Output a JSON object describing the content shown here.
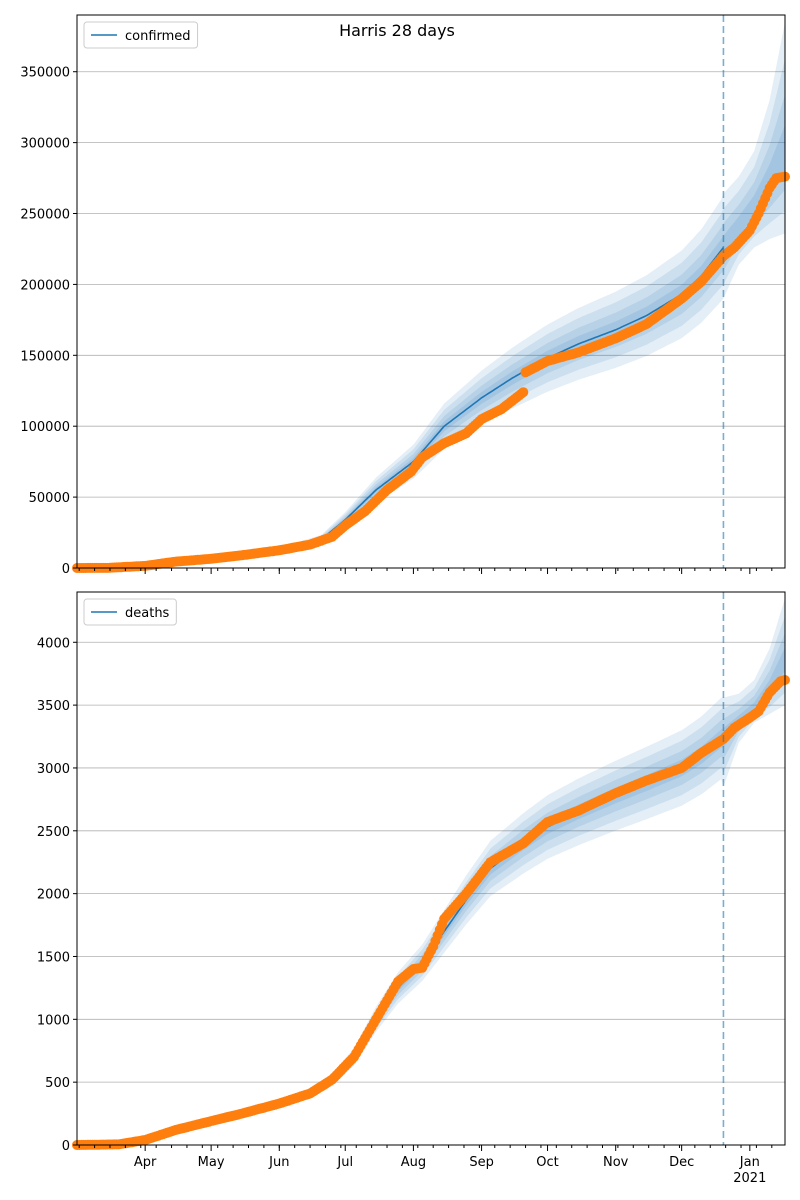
{
  "title": "Harris 28 days",
  "chart_data": [
    {
      "type": "line",
      "legend": "confirmed",
      "legend_position": "top-left",
      "grid": "horizontal",
      "x_range": [
        "2020-03-01",
        "2021-01-17"
      ],
      "ylim": [
        0,
        390000
      ],
      "yticks": [
        "0",
        "50000",
        "100000",
        "150000",
        "200000",
        "250000",
        "300000",
        "350000"
      ],
      "ytick_values": [
        0,
        50000,
        100000,
        150000,
        200000,
        250000,
        300000,
        350000
      ],
      "forecast_start": "2020-12-20",
      "model_line": [
        [
          "2020-03-01",
          0
        ],
        [
          "2020-04-01",
          1800
        ],
        [
          "2020-05-01",
          6500
        ],
        [
          "2020-06-01",
          12500
        ],
        [
          "2020-06-20",
          20000
        ],
        [
          "2020-07-01",
          34000
        ],
        [
          "2020-07-15",
          55000
        ],
        [
          "2020-08-01",
          75000
        ],
        [
          "2020-08-15",
          100000
        ],
        [
          "2020-09-01",
          120000
        ],
        [
          "2020-09-15",
          134000
        ],
        [
          "2020-10-01",
          148000
        ],
        [
          "2020-10-15",
          158000
        ],
        [
          "2020-11-01",
          168000
        ],
        [
          "2020-11-15",
          178000
        ],
        [
          "2020-12-01",
          193000
        ],
        [
          "2020-12-10",
          206000
        ],
        [
          "2020-12-20",
          226000
        ]
      ],
      "forecast_median": [
        [
          "2020-12-20",
          226000
        ],
        [
          "2020-12-27",
          240000
        ],
        [
          "2021-01-03",
          254000
        ],
        [
          "2021-01-10",
          272000
        ],
        [
          "2021-01-17",
          292000
        ]
      ],
      "forecast_lower": [
        [
          "2020-12-20",
          190000
        ],
        [
          "2020-12-27",
          214000
        ],
        [
          "2021-01-03",
          226000
        ],
        [
          "2021-01-10",
          232000
        ],
        [
          "2021-01-17",
          236000
        ]
      ],
      "forecast_upper": [
        [
          "2020-12-20",
          264000
        ],
        [
          "2020-12-27",
          276000
        ],
        [
          "2021-01-03",
          294000
        ],
        [
          "2021-01-10",
          330000
        ],
        [
          "2021-01-17",
          385000
        ]
      ],
      "observed": [
        [
          "2020-03-01",
          0
        ],
        [
          "2020-03-15",
          100
        ],
        [
          "2020-04-01",
          1500
        ],
        [
          "2020-04-15",
          4500
        ],
        [
          "2020-05-01",
          6500
        ],
        [
          "2020-05-15",
          9000
        ],
        [
          "2020-06-01",
          12500
        ],
        [
          "2020-06-15",
          16500
        ],
        [
          "2020-06-25",
          22000
        ],
        [
          "2020-07-01",
          30000
        ],
        [
          "2020-07-10",
          40000
        ],
        [
          "2020-07-20",
          55000
        ],
        [
          "2020-07-31",
          68000
        ],
        [
          "2020-08-05",
          78000
        ],
        [
          "2020-08-15",
          88000
        ],
        [
          "2020-08-25",
          95000
        ],
        [
          "2020-09-01",
          105000
        ],
        [
          "2020-09-10",
          112000
        ],
        [
          "2020-09-15",
          118000
        ],
        [
          "2020-09-20",
          124000
        ],
        [
          "2020-09-21",
          138000
        ],
        [
          "2020-10-01",
          146000
        ],
        [
          "2020-10-15",
          152000
        ],
        [
          "2020-11-01",
          162000
        ],
        [
          "2020-11-15",
          172000
        ],
        [
          "2020-12-01",
          190000
        ],
        [
          "2020-12-10",
          202000
        ],
        [
          "2020-12-20",
          220000
        ],
        [
          "2020-12-25",
          226000
        ],
        [
          "2021-01-01",
          238000
        ],
        [
          "2021-01-05",
          250000
        ],
        [
          "2021-01-10",
          268000
        ],
        [
          "2021-01-13",
          275000
        ],
        [
          "2021-01-17",
          276000
        ]
      ]
    },
    {
      "type": "line",
      "legend": "deaths",
      "legend_position": "top-left",
      "grid": "horizontal",
      "x_range": [
        "2020-03-01",
        "2021-01-17"
      ],
      "ylim": [
        0,
        4400
      ],
      "yticks": [
        "0",
        "500",
        "1000",
        "1500",
        "2000",
        "2500",
        "3000",
        "3500",
        "4000"
      ],
      "ytick_values": [
        0,
        500,
        1000,
        1500,
        2000,
        2500,
        3000,
        3500,
        4000
      ],
      "forecast_start": "2020-12-20",
      "model_line": [
        [
          "2020-03-01",
          0
        ],
        [
          "2020-03-20",
          5
        ],
        [
          "2020-04-01",
          40
        ],
        [
          "2020-04-15",
          120
        ],
        [
          "2020-05-01",
          190
        ],
        [
          "2020-05-15",
          250
        ],
        [
          "2020-06-01",
          330
        ],
        [
          "2020-06-15",
          410
        ],
        [
          "2020-06-25",
          520
        ],
        [
          "2020-07-05",
          700
        ],
        [
          "2020-07-15",
          1000
        ],
        [
          "2020-07-25",
          1250
        ],
        [
          "2020-08-05",
          1450
        ],
        [
          "2020-08-15",
          1700
        ],
        [
          "2020-08-25",
          1950
        ],
        [
          "2020-09-05",
          2200
        ],
        [
          "2020-09-20",
          2400
        ],
        [
          "2020-10-01",
          2530
        ],
        [
          "2020-10-15",
          2650
        ],
        [
          "2020-11-01",
          2780
        ],
        [
          "2020-11-15",
          2880
        ],
        [
          "2020-12-01",
          3000
        ],
        [
          "2020-12-10",
          3100
        ],
        [
          "2020-12-20",
          3250
        ]
      ],
      "forecast_median": [
        [
          "2020-12-20",
          3250
        ],
        [
          "2020-12-27",
          3370
        ],
        [
          "2021-01-03",
          3470
        ],
        [
          "2021-01-10",
          3630
        ],
        [
          "2021-01-17",
          3850
        ]
      ],
      "forecast_lower": [
        [
          "2020-12-20",
          2850
        ],
        [
          "2020-12-27",
          3200
        ],
        [
          "2021-01-03",
          3360
        ],
        [
          "2021-01-10",
          3430
        ],
        [
          "2021-01-17",
          3500
        ]
      ],
      "forecast_upper": [
        [
          "2020-12-20",
          3560
        ],
        [
          "2020-12-27",
          3590
        ],
        [
          "2021-01-03",
          3700
        ],
        [
          "2021-01-10",
          3950
        ],
        [
          "2021-01-17",
          4350
        ]
      ],
      "observed": [
        [
          "2020-03-01",
          0
        ],
        [
          "2020-03-20",
          5
        ],
        [
          "2020-04-01",
          40
        ],
        [
          "2020-04-15",
          120
        ],
        [
          "2020-05-01",
          190
        ],
        [
          "2020-05-15",
          250
        ],
        [
          "2020-06-01",
          330
        ],
        [
          "2020-06-15",
          410
        ],
        [
          "2020-06-25",
          520
        ],
        [
          "2020-07-05",
          700
        ],
        [
          "2020-07-15",
          1000
        ],
        [
          "2020-07-25",
          1300
        ],
        [
          "2020-08-01",
          1400
        ],
        [
          "2020-08-05",
          1410
        ],
        [
          "2020-08-10",
          1580
        ],
        [
          "2020-08-15",
          1800
        ],
        [
          "2020-08-25",
          2000
        ],
        [
          "2020-09-05",
          2250
        ],
        [
          "2020-09-20",
          2400
        ],
        [
          "2020-10-01",
          2570
        ],
        [
          "2020-10-15",
          2660
        ],
        [
          "2020-11-01",
          2800
        ],
        [
          "2020-11-15",
          2900
        ],
        [
          "2020-12-01",
          3000
        ],
        [
          "2020-12-10",
          3120
        ],
        [
          "2020-12-20",
          3230
        ],
        [
          "2020-12-25",
          3320
        ],
        [
          "2021-01-01",
          3400
        ],
        [
          "2021-01-05",
          3450
        ],
        [
          "2021-01-10",
          3600
        ],
        [
          "2021-01-15",
          3690
        ],
        [
          "2021-01-17",
          3700
        ]
      ]
    }
  ],
  "x_ticks": [
    {
      "label": "Apr",
      "date": "2020-04-01"
    },
    {
      "label": "May",
      "date": "2020-05-01"
    },
    {
      "label": "Jun",
      "date": "2020-06-01"
    },
    {
      "label": "Jul",
      "date": "2020-07-01"
    },
    {
      "label": "Aug",
      "date": "2020-08-01"
    },
    {
      "label": "Sep",
      "date": "2020-09-01"
    },
    {
      "label": "Oct",
      "date": "2020-10-01"
    },
    {
      "label": "Nov",
      "date": "2020-11-01"
    },
    {
      "label": "Dec",
      "date": "2020-12-01"
    },
    {
      "label": "Jan",
      "date": "2021-01-01"
    }
  ],
  "x_year_label": "2021",
  "colors": {
    "model": "#1f77b4",
    "observed": "#ff7f0e",
    "band": "#1f77b4",
    "grid": "#b0b0b0",
    "forecast_line": "#1f77b4"
  }
}
